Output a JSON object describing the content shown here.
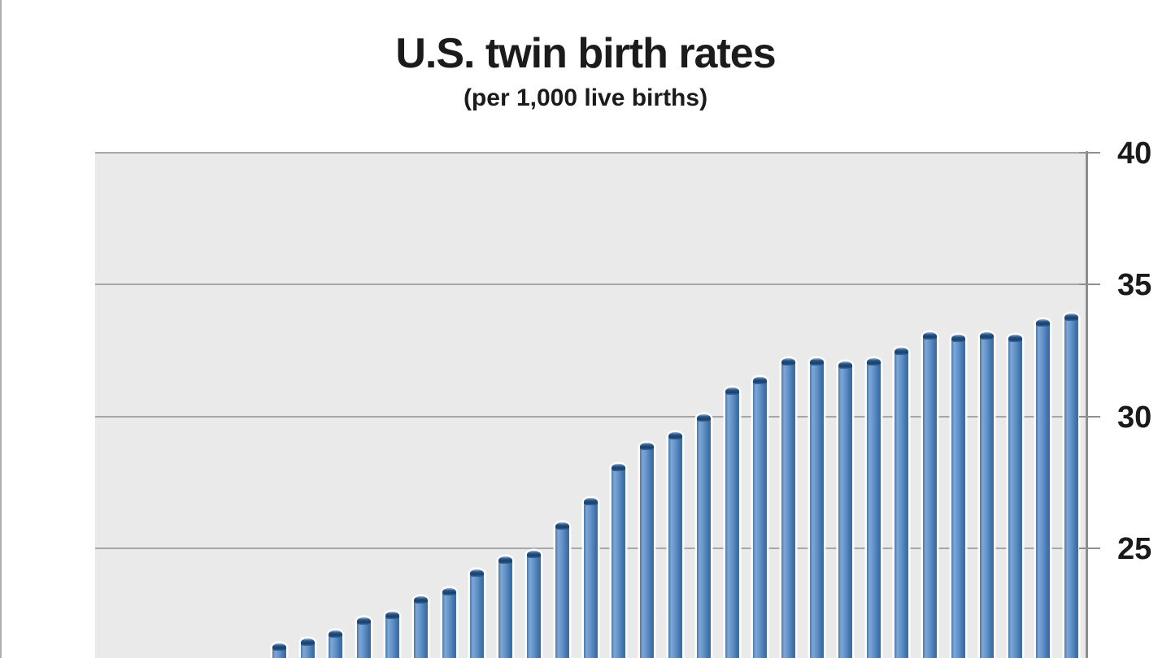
{
  "chart_data": {
    "type": "bar",
    "title": "U.S. twin birth rates",
    "subtitle": "(per 1,000 live births)",
    "values": [
      21.4,
      21.6,
      21.9,
      22.4,
      22.6,
      23.2,
      23.5,
      24.2,
      24.7,
      24.9,
      26.0,
      26.9,
      28.2,
      29.0,
      29.4,
      30.1,
      31.1,
      31.5,
      32.2,
      32.2,
      32.1,
      32.2,
      32.6,
      33.2,
      33.1,
      33.2,
      33.1,
      33.7,
      33.9
    ],
    "total_bar_slots": 35,
    "first_visible_slot": 6,
    "x_axis_labels_visible": false,
    "y_axis": {
      "side": "right",
      "ticks": [
        40,
        35,
        30,
        25
      ],
      "axis_top_value": 40,
      "visible_bottom_value": 20.9,
      "gridlines": true
    },
    "legend": false,
    "colors": {
      "bar": "#4f81bd",
      "bar_cap": "#1e4876",
      "plot_background": "#eaeaea",
      "gridline": "#a6a6a6",
      "axis_line": "#8c8c8c",
      "text": "#1b1b1b",
      "page_background": "#ffffff"
    }
  }
}
